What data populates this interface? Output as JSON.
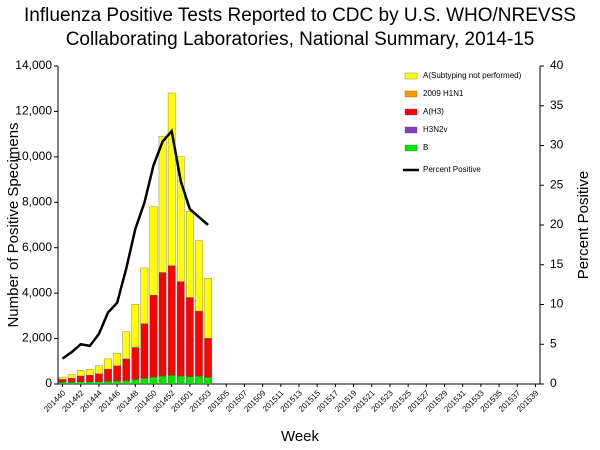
{
  "chart_data": {
    "type": "bar",
    "title": [
      "Influenza Positive Tests Reported to CDC by U.S. WHO/NREVSS",
      "Collaborating Laboratories, National Summary, 2014-15"
    ],
    "x_label": "Week",
    "y_label": "Number of Positive Specimens",
    "y2_label": "Percent Positive",
    "categories": [
      "201440",
      null,
      "201442",
      null,
      "201444",
      null,
      "201446",
      null,
      "201448",
      null,
      "201450",
      null,
      "201452",
      null,
      "201501",
      null,
      "201503",
      null,
      "201505",
      null,
      "201507",
      null,
      "201509",
      null,
      "201511",
      null,
      "201513",
      null,
      "201515",
      null,
      "201517",
      null,
      "201519",
      null,
      "201521",
      null,
      "201523",
      null,
      "201525",
      null,
      "201527",
      null,
      "201529",
      null,
      "201531",
      null,
      "201533",
      null,
      "201535",
      null,
      "201537",
      null,
      "201539"
    ],
    "series": [
      {
        "name": "B",
        "color": "#00e600",
        "values": [
          80,
          80,
          100,
          100,
          100,
          120,
          130,
          150,
          200,
          250,
          300,
          350,
          380,
          350,
          330,
          350,
          300,
          null,
          null,
          null,
          null,
          null,
          null,
          null,
          null,
          null,
          null,
          null,
          null,
          null,
          null,
          null,
          null,
          null,
          null,
          null,
          null,
          null,
          null,
          null,
          null,
          null,
          null,
          null,
          null,
          null,
          null,
          null,
          null,
          null,
          null,
          null,
          null
        ]
      },
      {
        "name": "H3N2v",
        "color": "#7f3fbf",
        "values": [
          0,
          0,
          0,
          0,
          0,
          0,
          0,
          0,
          0,
          0,
          0,
          0,
          0,
          0,
          0,
          0,
          0,
          null,
          null,
          null,
          null,
          null,
          null,
          null,
          null,
          null,
          null,
          null,
          null,
          null,
          null,
          null,
          null,
          null,
          null,
          null,
          null,
          null,
          null,
          null,
          null,
          null,
          null,
          null,
          null,
          null,
          null,
          null,
          null,
          null,
          null,
          null,
          null
        ]
      },
      {
        "name": "A(H3)",
        "color": "#ff0000",
        "values": [
          120,
          170,
          250,
          280,
          350,
          530,
          670,
          950,
          1400,
          2400,
          3600,
          4550,
          4820,
          4150,
          3470,
          2850,
          1700,
          null,
          null,
          null,
          null,
          null,
          null,
          null,
          null,
          null,
          null,
          null,
          null,
          null,
          null,
          null,
          null,
          null,
          null,
          null,
          null,
          null,
          null,
          null,
          null,
          null,
          null,
          null,
          null,
          null,
          null,
          null,
          null,
          null,
          null,
          null,
          null
        ]
      },
      {
        "name": "2009 H1N1",
        "color": "#ff9900",
        "values": [
          5,
          5,
          5,
          5,
          5,
          5,
          5,
          5,
          10,
          10,
          10,
          10,
          10,
          10,
          10,
          10,
          10,
          null,
          null,
          null,
          null,
          null,
          null,
          null,
          null,
          null,
          null,
          null,
          null,
          null,
          null,
          null,
          null,
          null,
          null,
          null,
          null,
          null,
          null,
          null,
          null,
          null,
          null,
          null,
          null,
          null,
          null,
          null,
          null,
          null,
          null,
          null,
          null
        ]
      },
      {
        "name": "A(Subtyping not performed)",
        "color": "#ffff00",
        "values": [
          100,
          150,
          250,
          270,
          350,
          450,
          550,
          1200,
          1900,
          2450,
          3900,
          6000,
          7600,
          5500,
          3800,
          3100,
          2650,
          null,
          null,
          null,
          null,
          null,
          null,
          null,
          null,
          null,
          null,
          null,
          null,
          null,
          null,
          null,
          null,
          null,
          null,
          null,
          null,
          null,
          null,
          null,
          null,
          null,
          null,
          null,
          null,
          null,
          null,
          null,
          null,
          null,
          null,
          null,
          null
        ]
      },
      {
        "name": "Percent Positive",
        "color": "#000000",
        "axis": "y2",
        "type": "line",
        "values": [
          3.2,
          4,
          5,
          4.8,
          6.3,
          9,
          10.2,
          14.5,
          19.5,
          22.8,
          27.5,
          30.5,
          31.8,
          25.5,
          22,
          21,
          20,
          null,
          null,
          null,
          null,
          null,
          null,
          null,
          null,
          null,
          null,
          null,
          null,
          null,
          null,
          null,
          null,
          null,
          null,
          null,
          null,
          null,
          null,
          null,
          null,
          null,
          null,
          null,
          null,
          null,
          null,
          null,
          null,
          null,
          null,
          null,
          null
        ]
      }
    ],
    "ylim": [
      0,
      14000
    ],
    "yticks": [
      0,
      {
        "value": 2000,
        "label": "2,000"
      },
      {
        "value": 4000,
        "label": "4,000"
      },
      {
        "value": 6000,
        "label": "6,000"
      },
      {
        "value": 8000,
        "label": "8,000"
      },
      {
        "value": 10000,
        "label": "10,000"
      },
      {
        "value": 12000,
        "label": "12,000"
      },
      {
        "value": 14000,
        "label": "14,000"
      }
    ],
    "y2lim": [
      0,
      40
    ],
    "y2ticks": [
      0,
      5,
      10,
      15,
      20,
      25,
      30,
      35,
      40
    ],
    "legend": "upper right",
    "grid": false
  }
}
